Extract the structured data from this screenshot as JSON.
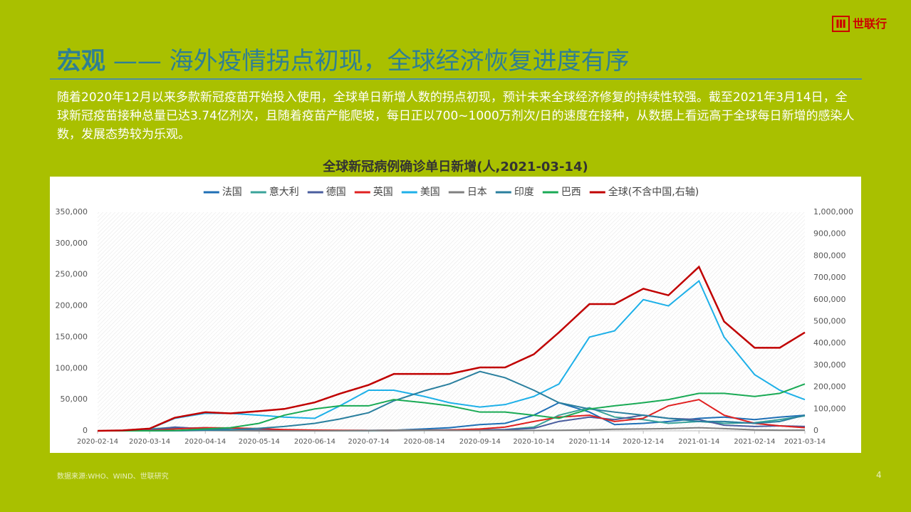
{
  "header": {
    "title_bold": "宏观",
    "title_rest": "—— 海外疫情拐点初现，全球经济恢复进度有序",
    "logo": "世联行"
  },
  "body": "随着2020年12月以来多款新冠疫苗开始投入使用，全球单日新增人数的拐点初现，预计未来全球经济修复的持续性较强。截至2021年3月14日，全球新冠疫苗接种总量已达3.74亿剂次，且随着疫苗产能爬坡，每日正以700~1000万剂次/日的速度在接种，从数据上看远高于全球每日新增的感染人数，发展态势较为乐观。",
  "footer": {
    "source": "数据来源:WHO、WIND、世联研究",
    "page": 4
  },
  "chart_data": {
    "type": "line",
    "title": "全球新冠病例确诊单日新增(人,2021-03-14)",
    "legend": "top",
    "x": [
      "2020-02-14",
      "2020-02-28",
      "2020-03-14",
      "2020-03-28",
      "2020-04-14",
      "2020-04-28",
      "2020-05-14",
      "2020-05-28",
      "2020-06-14",
      "2020-06-28",
      "2020-07-14",
      "2020-07-28",
      "2020-08-14",
      "2020-08-28",
      "2020-09-14",
      "2020-09-28",
      "2020-10-14",
      "2020-10-28",
      "2020-11-14",
      "2020-11-28",
      "2020-12-14",
      "2020-12-28",
      "2021-01-14",
      "2021-01-28",
      "2021-02-14",
      "2021-02-28",
      "2021-03-14"
    ],
    "xlim": [
      "2020-02-14",
      "2021-03-14"
    ],
    "xticks": [
      "2020-02-14",
      "2020-03-14",
      "2020-04-14",
      "2020-05-14",
      "2020-06-14",
      "2020-07-14",
      "2020-08-14",
      "2020-09-14",
      "2020-10-14",
      "2020-11-14",
      "2020-12-14",
      "2021-01-14",
      "2021-02-14",
      "2021-03-14"
    ],
    "ylim": [
      0,
      350000
    ],
    "yticks": [
      0,
      {
        "value": 50000,
        "label": "50,000"
      },
      {
        "value": 100000,
        "label": "100,000"
      },
      {
        "value": 150000,
        "label": "150,000"
      },
      {
        "value": 200000,
        "label": "200,000"
      },
      {
        "value": 250000,
        "label": "250,000"
      },
      {
        "value": 300000,
        "label": "300,000"
      },
      {
        "value": 350000,
        "label": "350,000"
      }
    ],
    "y2lim": [
      0,
      1000000
    ],
    "y2ticks": [
      0,
      {
        "value": 100000,
        "label": "100,000"
      },
      {
        "value": 200000,
        "label": "200,000"
      },
      {
        "value": 300000,
        "label": "300,000"
      },
      {
        "value": 400000,
        "label": "400,000"
      },
      {
        "value": 500000,
        "label": "500,000"
      },
      {
        "value": 600000,
        "label": "600,000"
      },
      {
        "value": 700000,
        "label": "700,000"
      },
      {
        "value": 800000,
        "label": "800,000"
      },
      {
        "value": 900000,
        "label": "900,000"
      },
      {
        "value": 1000000,
        "label": "1,000,000"
      }
    ],
    "series": [
      {
        "name": "法国",
        "color": "#1f6fb5",
        "values": [
          0,
          0,
          1000,
          4000,
          5000,
          2000,
          1000,
          500,
          500,
          500,
          700,
          1000,
          3000,
          5000,
          10000,
          12000,
          25000,
          45000,
          30000,
          10000,
          12000,
          15000,
          20000,
          22000,
          18000,
          22000,
          25000
        ]
      },
      {
        "name": "意大利",
        "color": "#3aa39a",
        "values": [
          0,
          0,
          3000,
          5500,
          3000,
          2000,
          1000,
          500,
          300,
          200,
          200,
          300,
          500,
          1500,
          1500,
          2000,
          6000,
          25000,
          37000,
          22000,
          18000,
          12000,
          15000,
          12000,
          13000,
          18000,
          24000
        ]
      },
      {
        "name": "德国",
        "color": "#4a5d9e",
        "values": [
          0,
          0,
          1500,
          6000,
          3000,
          1500,
          800,
          500,
          400,
          500,
          400,
          700,
          1200,
          1500,
          1500,
          2000,
          4000,
          15000,
          22000,
          18000,
          25000,
          20000,
          18000,
          9000,
          7000,
          8000,
          7000
        ]
      },
      {
        "name": "英国",
        "color": "#e02020",
        "values": [
          0,
          0,
          500,
          3000,
          5000,
          4500,
          3500,
          2000,
          1200,
          800,
          600,
          800,
          1000,
          1200,
          3000,
          6000,
          15000,
          22000,
          25000,
          15000,
          20000,
          40000,
          50000,
          25000,
          12000,
          8000,
          5000
        ]
      },
      {
        "name": "美国",
        "color": "#1eb0e8",
        "values": [
          0,
          0,
          3000,
          20000,
          28000,
          28000,
          25000,
          22000,
          20000,
          40000,
          65000,
          65000,
          55000,
          45000,
          38000,
          42000,
          55000,
          75000,
          150000,
          160000,
          210000,
          200000,
          240000,
          150000,
          90000,
          65000,
          50000
        ]
      },
      {
        "name": "日本",
        "color": "#808080",
        "values": [
          0,
          0,
          0,
          100,
          500,
          300,
          50,
          30,
          50,
          200,
          400,
          1200,
          1000,
          600,
          500,
          500,
          600,
          800,
          1500,
          2500,
          3000,
          3500,
          5000,
          3500,
          1500,
          1000,
          1200
        ]
      },
      {
        "name": "印度",
        "color": "#2a7f9e",
        "values": [
          0,
          0,
          0,
          100,
          1000,
          1500,
          4000,
          7000,
          12000,
          19000,
          29000,
          48000,
          64000,
          75000,
          95000,
          85000,
          65000,
          45000,
          35000,
          30000,
          25000,
          20000,
          15000,
          15000,
          12000,
          15000,
          25000
        ]
      },
      {
        "name": "巴西",
        "color": "#1aaa55",
        "values": [
          0,
          0,
          0,
          500,
          3000,
          5000,
          12000,
          25000,
          35000,
          40000,
          40000,
          50000,
          45000,
          40000,
          30000,
          30000,
          25000,
          20000,
          35000,
          40000,
          45000,
          50000,
          60000,
          60000,
          55000,
          60000,
          75000
        ]
      },
      {
        "name": "全球(不含中国,右轴)",
        "color": "#c00000",
        "axis": "y2",
        "values": [
          0,
          2000,
          10000,
          60000,
          85000,
          80000,
          90000,
          100000,
          130000,
          170000,
          210000,
          260000,
          260000,
          260000,
          290000,
          290000,
          350000,
          450000,
          580000,
          580000,
          650000,
          620000,
          750000,
          500000,
          380000,
          380000,
          450000
        ]
      }
    ]
  }
}
